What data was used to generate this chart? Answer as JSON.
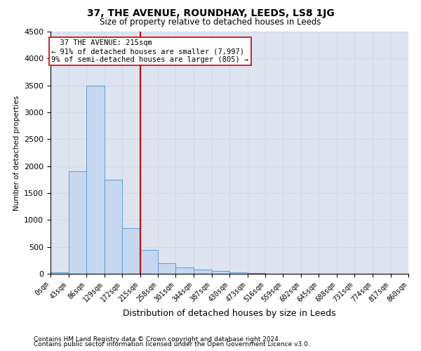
{
  "title": "37, THE AVENUE, ROUNDHAY, LEEDS, LS8 1JG",
  "subtitle": "Size of property relative to detached houses in Leeds",
  "xlabel": "Distribution of detached houses by size in Leeds",
  "ylabel": "Number of detached properties",
  "footnote1": "Contains HM Land Registry data © Crown copyright and database right 2024.",
  "footnote2": "Contains public sector information licensed under the Open Government Licence v3.0.",
  "bins": [
    0,
    43,
    86,
    129,
    172,
    215,
    258,
    301,
    344,
    387,
    430,
    473,
    516,
    559,
    602,
    645,
    688,
    731,
    774,
    817,
    860
  ],
  "bin_labels": [
    "0sqm",
    "43sqm",
    "86sqm",
    "129sqm",
    "172sqm",
    "215sqm",
    "258sqm",
    "301sqm",
    "344sqm",
    "387sqm",
    "430sqm",
    "473sqm",
    "516sqm",
    "559sqm",
    "602sqm",
    "645sqm",
    "688sqm",
    "731sqm",
    "774sqm",
    "817sqm",
    "860sqm"
  ],
  "counts": [
    30,
    1900,
    3500,
    1750,
    850,
    450,
    190,
    120,
    75,
    50,
    25,
    12,
    6,
    4,
    2,
    1,
    1,
    0,
    0,
    0
  ],
  "property_size": 215,
  "bar_color": "#c5d8f0",
  "bar_edge_color": "#5b9bd5",
  "vline_color": "#cc0000",
  "annotation_box_edge": "#cc0000",
  "annotation_line1": "  37 THE AVENUE: 215sqm",
  "annotation_line2": "← 91% of detached houses are smaller (7,997)",
  "annotation_line3": "9% of semi-detached houses are larger (805) →",
  "ylim": [
    0,
    4500
  ],
  "yticks": [
    0,
    500,
    1000,
    1500,
    2000,
    2500,
    3000,
    3500,
    4000,
    4500
  ],
  "grid_color": "#d0d8e8",
  "bg_color": "#dde4f0",
  "title_fontsize": 10,
  "subtitle_fontsize": 8.5,
  "xlabel_fontsize": 9,
  "ylabel_fontsize": 7.5,
  "tick_fontsize": 7,
  "footnote_fontsize": 6.5
}
